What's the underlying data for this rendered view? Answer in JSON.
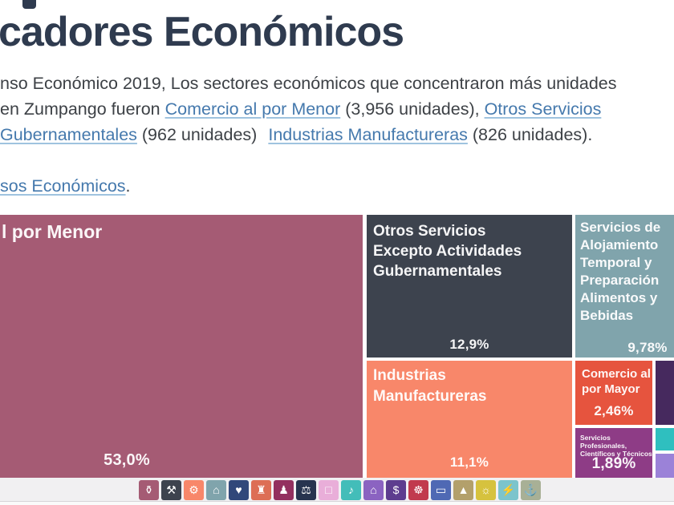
{
  "header": {
    "title": "cadores Económicos"
  },
  "intro": {
    "line1": "nso Económico 2019, Los sectores económicos que concentraron más unidades",
    "line2": {
      "pre": "en Zumpango fueron ",
      "link1": "Comercio al por Menor",
      "mid": " (3,956 unidades), ",
      "link2": "Otros Servicios"
    },
    "line3": {
      "link1": "Gubernamentales",
      "mid": " (962 unidades)",
      "link2": "Industrias Manufactureras",
      "end": " (826 unidades)."
    },
    "source_line": {
      "link": "sos Económicos",
      "end": "."
    }
  },
  "treemap": {
    "menor": {
      "label": "l por Menor",
      "pct": "53,0%",
      "color": "#a55b74"
    },
    "otros": {
      "l1": "Otros Servicios",
      "l2": "Excepto Actividades",
      "l3": "Gubernamentales",
      "pct": "12,9%",
      "color": "#3d434e"
    },
    "manufactureras": {
      "l1": "Industrias",
      "l2": "Manufactureras",
      "pct": "11,1%",
      "color": "#f8876a"
    },
    "alojamiento": {
      "l1": "Servicios de",
      "l2": "Alojamiento",
      "l3": "Temporal y",
      "l4": "Preparación",
      "l5": "Alimentos y",
      "l6": "Bebidas",
      "pct": "9,78%",
      "color": "#80a4ac"
    },
    "mayor": {
      "l1": "Comercio al",
      "l2": "por Mayor",
      "pct": "2,46%",
      "color": "#e6543e"
    },
    "profesionales": {
      "l1": "Servicios Profesionales,",
      "l2": "Científicos y Técnicos",
      "pct": "1,89%",
      "color": "#8e3c86"
    },
    "sliver_dark_purple": {
      "color": "#46295e"
    },
    "sliver_cyan": {
      "color": "#2fbfbf"
    },
    "sliver_lavender": {
      "color": "#9b82d8"
    }
  },
  "chart_data": {
    "type": "treemap",
    "title": "",
    "categories": [
      "Comercio al por Menor",
      "Otros Servicios Excepto Actividades Gubernamentales",
      "Industrias Manufactureras",
      "Servicios de Alojamiento Temporal y de Preparación de Alimentos y Bebidas",
      "Comercio al por Mayor",
      "Servicios Profesionales, Científicos y Técnicos"
    ],
    "values": [
      53.0,
      12.9,
      11.1,
      9.78,
      2.46,
      1.89
    ],
    "value_labels": [
      "53,0%",
      "12,9%",
      "11,1%",
      "9,78%",
      "2,46%",
      "1,89%"
    ],
    "units_mentioned_in_text": {
      "Comercio al por Menor": 3956,
      "Otros Servicios Excepto Actividades Gubernamentales": 962,
      "Industrias Manufactureras": 826
    },
    "unlabeled_small_segments": 3,
    "legend_position": "bottom"
  },
  "legend": [
    {
      "name": "shopping-bag",
      "glyph": "⚱",
      "color": "#a55b74"
    },
    {
      "name": "tools",
      "glyph": "⚒",
      "color": "#3d434e"
    },
    {
      "name": "factory",
      "glyph": "⚙",
      "color": "#f8876a"
    },
    {
      "name": "lodging",
      "glyph": "⌂",
      "color": "#80a4ac"
    },
    {
      "name": "health-heart",
      "glyph": "♥",
      "color": "#31487a"
    },
    {
      "name": "bank-building",
      "glyph": "♜",
      "color": "#dd6e55"
    },
    {
      "name": "person",
      "glyph": "♟",
      "color": "#93305f"
    },
    {
      "name": "briefcase",
      "glyph": "⚖",
      "color": "#27344f"
    },
    {
      "name": "package",
      "glyph": "□",
      "color": "#e9aed9"
    },
    {
      "name": "music-note",
      "glyph": "♪",
      "color": "#43bdb9"
    },
    {
      "name": "house",
      "glyph": "⌂",
      "color": "#8b63c1"
    },
    {
      "name": "money-bag",
      "glyph": "$",
      "color": "#5d3d8f"
    },
    {
      "name": "truck-wheel",
      "glyph": "☸",
      "color": "#c13a4e"
    },
    {
      "name": "transport",
      "glyph": "▭",
      "color": "#4f69b4"
    },
    {
      "name": "cone",
      "glyph": "▲",
      "color": "#b3a06b"
    },
    {
      "name": "bulb",
      "glyph": "☼",
      "color": "#d6c23e"
    },
    {
      "name": "plug",
      "glyph": "⚡",
      "color": "#7cc4cc"
    },
    {
      "name": "ship",
      "glyph": "⚓",
      "color": "#a8b096"
    }
  ]
}
